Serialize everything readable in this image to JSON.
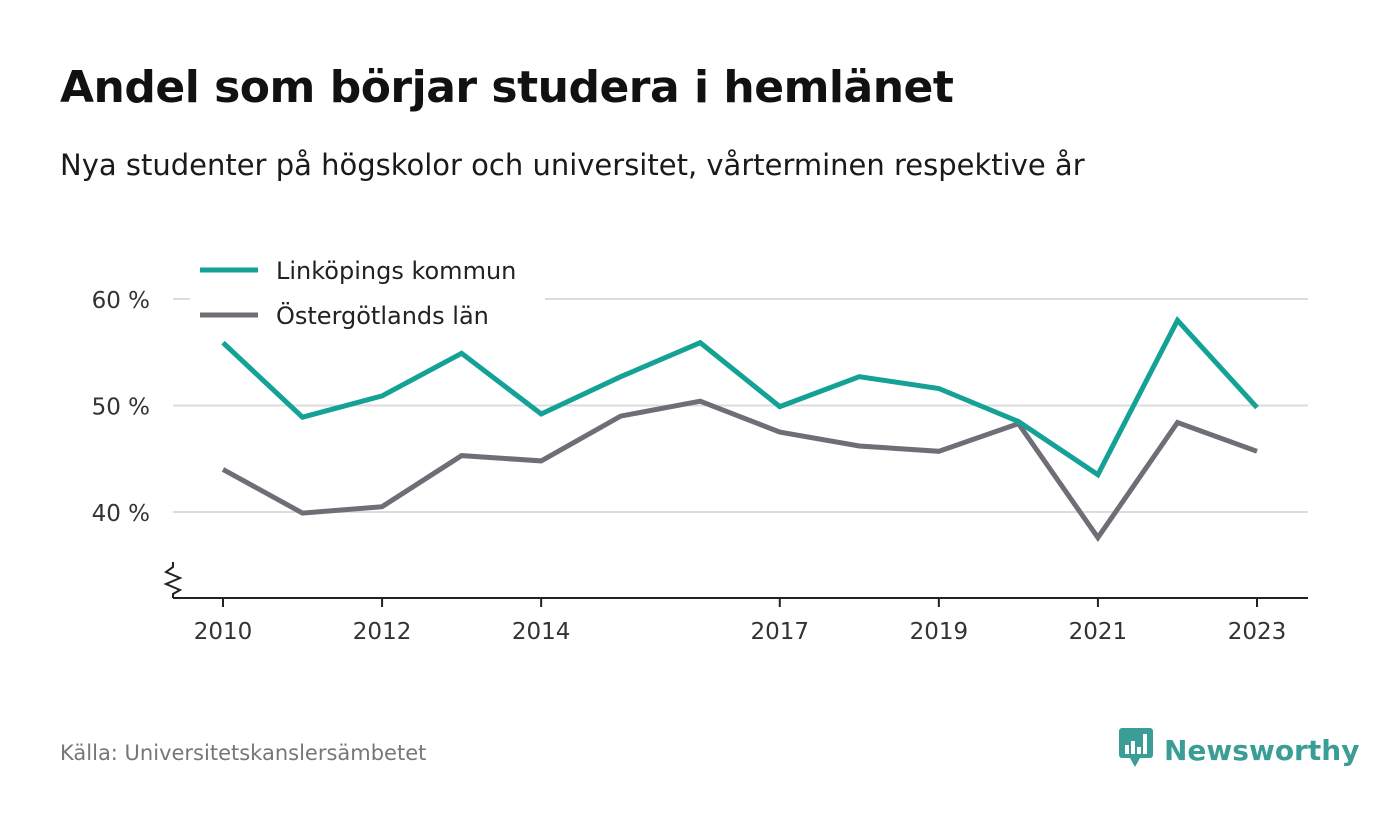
{
  "title": "Andel som börjar studera i hemlänet",
  "subtitle": "Nya studenter på högskolor och universitet, vårterminen respektive år",
  "source": "Källa: Universitetskanslersämbetet",
  "brand": {
    "name": "Newsworthy",
    "icon": "newsworthy-logo-icon",
    "color": "#3a9e96"
  },
  "chart_data": {
    "type": "line",
    "x": [
      2010,
      2011,
      2012,
      2013,
      2014,
      2015,
      2016,
      2017,
      2018,
      2019,
      2020,
      2021,
      2022,
      2023
    ],
    "x_ticks": [
      2010,
      2012,
      2014,
      2017,
      2019,
      2021,
      2023
    ],
    "y_ticks": [
      40,
      50,
      60
    ],
    "y_tick_labels": [
      "40 %",
      "50 %",
      "60 %"
    ],
    "ylim": [
      32,
      60
    ],
    "y_axis_broken": true,
    "grid": true,
    "legend_position": "top-left",
    "series": [
      {
        "name": "Linköpings kommun",
        "color": "#14a196",
        "values": [
          55.9,
          48.9,
          50.9,
          54.9,
          49.2,
          52.7,
          55.9,
          49.9,
          52.7,
          51.6,
          48.5,
          43.5,
          58.0,
          49.8
        ]
      },
      {
        "name": "Östergötlands län",
        "color": "#6f6e76",
        "values": [
          44.0,
          39.9,
          40.5,
          45.3,
          44.8,
          49.0,
          50.4,
          47.5,
          46.2,
          45.7,
          48.3,
          37.6,
          48.4,
          45.7
        ]
      }
    ]
  }
}
